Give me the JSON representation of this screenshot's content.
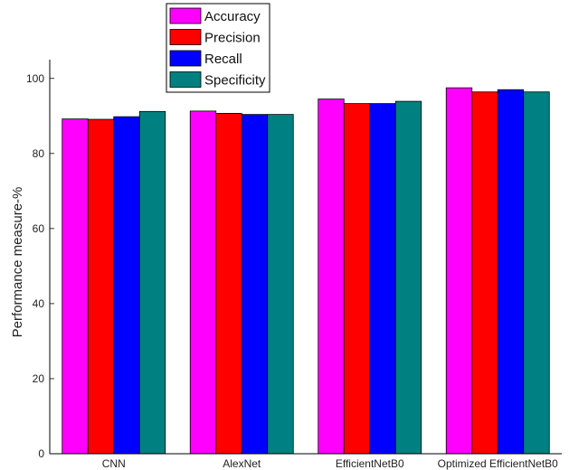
{
  "chart_data": {
    "type": "bar",
    "title": "",
    "xlabel": "",
    "ylabel": "Performance measure-%",
    "ylim": [
      0,
      105
    ],
    "yticks": [
      0,
      20,
      40,
      60,
      80,
      100
    ],
    "categories": [
      "CNN",
      "AlexNet",
      "EfficientNetB0",
      "Optimized EfficientNetB0"
    ],
    "series": [
      {
        "name": "Accuracy",
        "color": "#ff00ff",
        "values": [
          89.2,
          91.3,
          94.5,
          97.5
        ]
      },
      {
        "name": "Precision",
        "color": "#ff0000",
        "values": [
          89.1,
          90.7,
          93.3,
          96.4
        ]
      },
      {
        "name": "Recall",
        "color": "#0000ff",
        "values": [
          89.8,
          90.4,
          93.3,
          97.0
        ]
      },
      {
        "name": "Specificity",
        "color": "#008080",
        "values": [
          91.2,
          90.4,
          93.9,
          96.4
        ]
      }
    ],
    "legend_position": "top-center",
    "grid": false
  }
}
